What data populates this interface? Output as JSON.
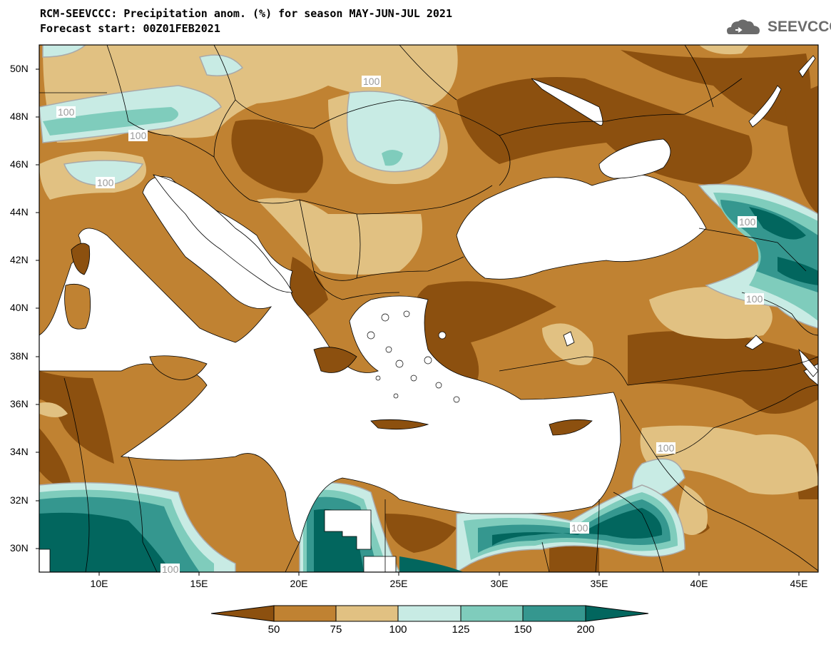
{
  "title": {
    "line1": "RCM-SEEVCCC: Precipitation anom. (%) for season MAY-JUN-JUL 2021",
    "line2": "Forecast start: 00Z01FEB2021"
  },
  "logo": {
    "text": "SEEVCCC",
    "icon": "cloud-logo-icon"
  },
  "map": {
    "lat_labels": [
      "50N",
      "48N",
      "46N",
      "44N",
      "42N",
      "40N",
      "38N",
      "36N",
      "34N",
      "32N",
      "30N"
    ],
    "lon_labels": [
      "10E",
      "15E",
      "20E",
      "25E",
      "30E",
      "35E",
      "40E",
      "45E"
    ],
    "contour_label": "100",
    "lon_range": [
      7,
      46
    ],
    "lat_range": [
      29,
      51
    ]
  },
  "colorbar": {
    "labels": [
      "50",
      "75",
      "100",
      "125",
      "150",
      "200"
    ],
    "colors": [
      "#8c500f",
      "#c08232",
      "#e1c182",
      "#c8ebe4",
      "#7fccbc",
      "#35978f",
      "#02665e"
    ]
  }
}
